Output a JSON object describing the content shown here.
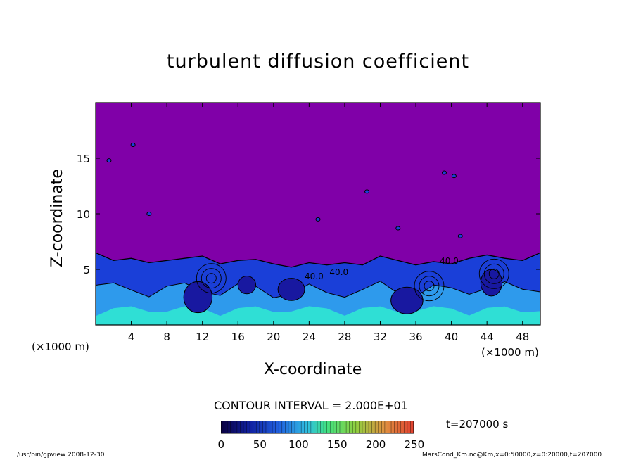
{
  "chart_data": {
    "type": "heatmap",
    "title": "turbulent diffusion coefficient",
    "xlabel": "X-coordinate",
    "ylabel": "Z-coordinate",
    "x_unit": "(×1000 m)",
    "x_ticks": [
      4,
      8,
      12,
      16,
      20,
      24,
      28,
      32,
      36,
      40,
      44,
      48
    ],
    "y_ticks": [
      5,
      10,
      15
    ],
    "xlim": [
      0,
      50
    ],
    "ylim": [
      0,
      20
    ],
    "contour_interval": "CONTOUR INTERVAL = 2.000E+01",
    "contour_labels": [
      "40.0",
      "40.0",
      "40.0"
    ],
    "time": "t=207000 s",
    "colorbar": {
      "ticks": [
        0,
        50,
        100,
        150,
        200,
        250
      ],
      "range": [
        0,
        250
      ]
    },
    "boundary_layer_top": [
      [
        0,
        6.5
      ],
      [
        2,
        5.8
      ],
      [
        4,
        6.0
      ],
      [
        6,
        5.6
      ],
      [
        8,
        5.8
      ],
      [
        10,
        6.0
      ],
      [
        12,
        6.2
      ],
      [
        14,
        5.5
      ],
      [
        16,
        5.8
      ],
      [
        18,
        5.9
      ],
      [
        20,
        5.5
      ],
      [
        22,
        5.2
      ],
      [
        24,
        5.6
      ],
      [
        26,
        5.4
      ],
      [
        28,
        5.6
      ],
      [
        30,
        5.4
      ],
      [
        32,
        6.2
      ],
      [
        34,
        5.8
      ],
      [
        36,
        5.4
      ],
      [
        38,
        5.7
      ],
      [
        40,
        5.5
      ],
      [
        42,
        6.0
      ],
      [
        44,
        6.3
      ],
      [
        46,
        6.0
      ],
      [
        48,
        5.8
      ],
      [
        50,
        6.5
      ]
    ]
  },
  "colors": {
    "background": "#8000a8",
    "mixed_layer": "#1a3fd8",
    "mid": "#33aaf0",
    "high": "#30f0d0",
    "contour": "#000000"
  },
  "footer": {
    "left": "/usr/bin/gpview  2008-12-30",
    "right": "MarsCond_Km.nc@Km,x=0:50000,z=0:20000,t=207000"
  }
}
